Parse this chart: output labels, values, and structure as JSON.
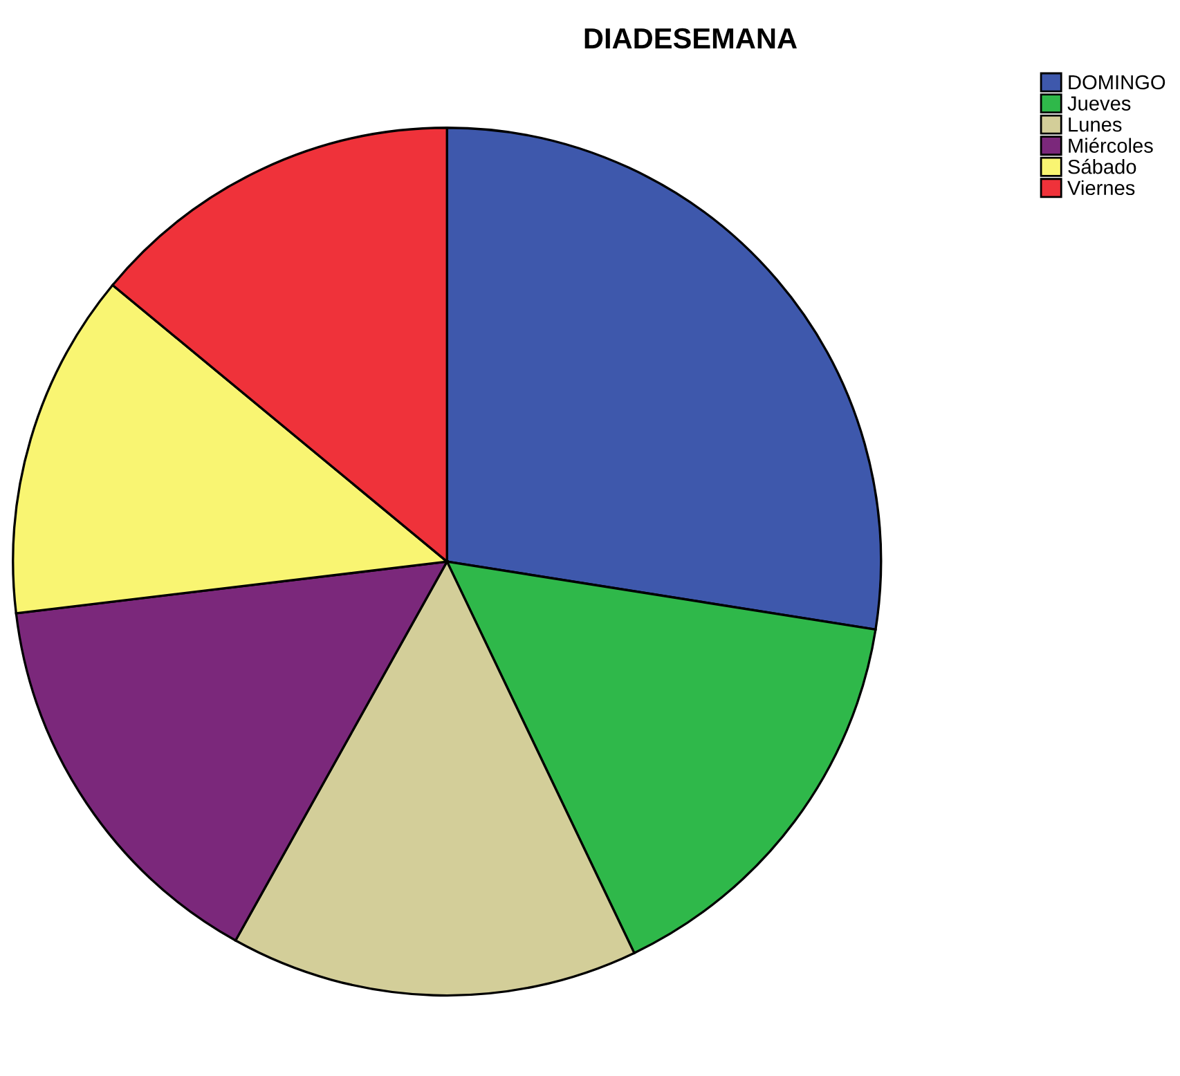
{
  "chart_data": {
    "type": "pie",
    "title": "DIADESEMANA",
    "categories": [
      "DOMINGO",
      "Jueves",
      "Lunes",
      "Miércoles",
      "Sábado",
      "Viernes"
    ],
    "values": [
      27.5,
      15.4,
      15.2,
      15.0,
      12.9,
      14.0
    ],
    "colors": [
      "#3e58ac",
      "#2fb84a",
      "#d3ce99",
      "#7b287b",
      "#f9f572",
      "#ef323a"
    ],
    "legend": "top right"
  }
}
